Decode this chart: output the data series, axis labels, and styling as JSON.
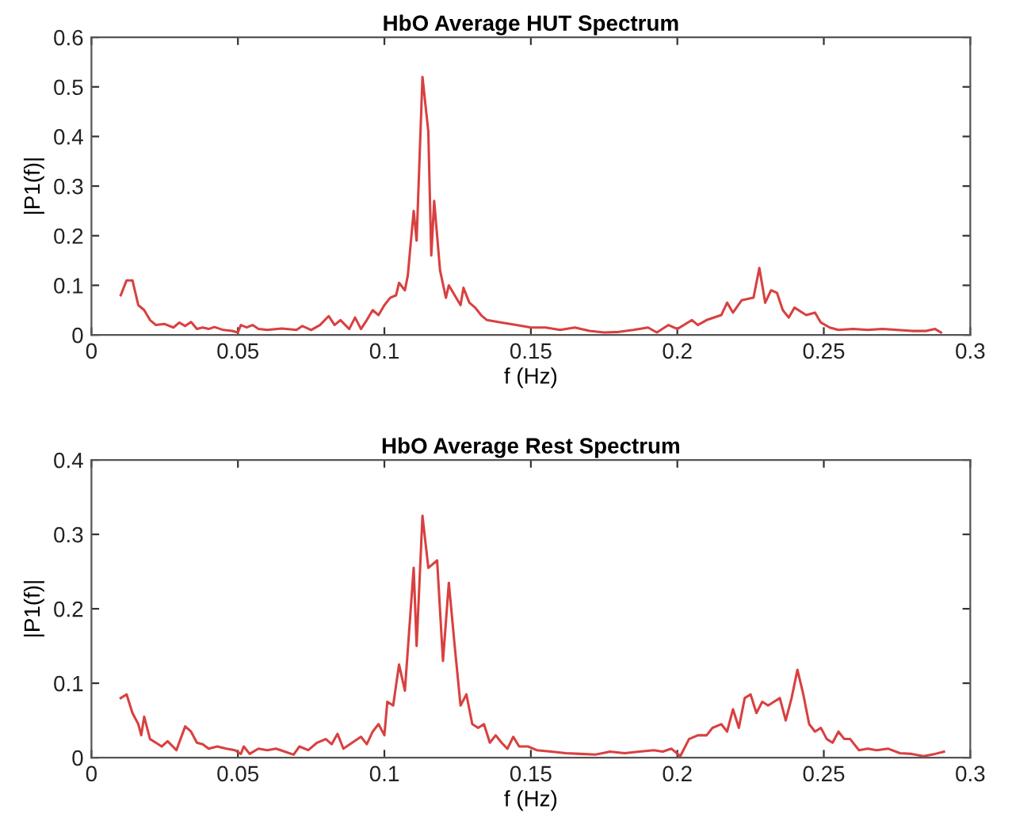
{
  "chart_data": [
    {
      "type": "line",
      "title": "HbO Average HUT Spectrum",
      "xlabel": "f (Hz)",
      "ylabel": "|P1(f)|",
      "xlim": [
        0,
        0.3
      ],
      "ylim": [
        0,
        0.6
      ],
      "xticks": [
        0,
        0.05,
        0.1,
        0.15,
        0.2,
        0.25,
        0.3
      ],
      "yticks": [
        0,
        0.1,
        0.2,
        0.3,
        0.4,
        0.5,
        0.6
      ],
      "grid": false,
      "legend": false,
      "series": [
        {
          "color": "#d94040",
          "x": [
            0.01,
            0.012,
            0.014,
            0.016,
            0.018,
            0.02,
            0.022,
            0.025,
            0.028,
            0.03,
            0.032,
            0.034,
            0.036,
            0.038,
            0.04,
            0.042,
            0.045,
            0.048,
            0.05,
            0.051,
            0.053,
            0.055,
            0.057,
            0.06,
            0.065,
            0.07,
            0.072,
            0.075,
            0.078,
            0.081,
            0.083,
            0.085,
            0.088,
            0.09,
            0.092,
            0.094,
            0.096,
            0.098,
            0.1,
            0.102,
            0.104,
            0.105,
            0.107,
            0.108,
            0.11,
            0.111,
            0.113,
            0.115,
            0.116,
            0.117,
            0.119,
            0.121,
            0.122,
            0.124,
            0.126,
            0.127,
            0.129,
            0.131,
            0.133,
            0.135,
            0.14,
            0.145,
            0.15,
            0.155,
            0.16,
            0.165,
            0.17,
            0.175,
            0.18,
            0.185,
            0.19,
            0.193,
            0.197,
            0.2,
            0.205,
            0.207,
            0.21,
            0.215,
            0.217,
            0.219,
            0.222,
            0.226,
            0.228,
            0.23,
            0.232,
            0.234,
            0.236,
            0.238,
            0.24,
            0.244,
            0.247,
            0.249,
            0.252,
            0.255,
            0.26,
            0.265,
            0.27,
            0.275,
            0.28,
            0.285,
            0.288,
            0.29
          ],
          "values": [
            0.08,
            0.11,
            0.11,
            0.06,
            0.05,
            0.03,
            0.02,
            0.022,
            0.015,
            0.025,
            0.018,
            0.026,
            0.012,
            0.015,
            0.012,
            0.016,
            0.01,
            0.008,
            0.005,
            0.02,
            0.015,
            0.02,
            0.012,
            0.01,
            0.013,
            0.01,
            0.018,
            0.01,
            0.02,
            0.038,
            0.02,
            0.03,
            0.012,
            0.035,
            0.012,
            0.03,
            0.05,
            0.04,
            0.06,
            0.075,
            0.08,
            0.105,
            0.09,
            0.12,
            0.25,
            0.19,
            0.52,
            0.41,
            0.16,
            0.27,
            0.13,
            0.075,
            0.1,
            0.08,
            0.06,
            0.095,
            0.065,
            0.055,
            0.04,
            0.03,
            0.025,
            0.02,
            0.015,
            0.015,
            0.01,
            0.015,
            0.008,
            0.005,
            0.006,
            0.01,
            0.015,
            0.005,
            0.02,
            0.012,
            0.03,
            0.02,
            0.03,
            0.04,
            0.065,
            0.045,
            0.07,
            0.075,
            0.135,
            0.065,
            0.09,
            0.085,
            0.05,
            0.035,
            0.055,
            0.04,
            0.045,
            0.025,
            0.015,
            0.01,
            0.012,
            0.01,
            0.012,
            0.01,
            0.008,
            0.008,
            0.012,
            0.005
          ]
        }
      ]
    },
    {
      "type": "line",
      "title": "HbO Average Rest Spectrum",
      "xlabel": "f (Hz)",
      "ylabel": "|P1(f)|",
      "xlim": [
        0,
        0.3
      ],
      "ylim": [
        0,
        0.4
      ],
      "xticks": [
        0,
        0.05,
        0.1,
        0.15,
        0.2,
        0.25,
        0.3
      ],
      "yticks": [
        0,
        0.1,
        0.2,
        0.3,
        0.4
      ],
      "grid": false,
      "legend": false,
      "series": [
        {
          "color": "#d94040",
          "x": [
            0.01,
            0.012,
            0.014,
            0.016,
            0.017,
            0.018,
            0.02,
            0.022,
            0.024,
            0.026,
            0.029,
            0.032,
            0.034,
            0.036,
            0.038,
            0.04,
            0.043,
            0.046,
            0.049,
            0.051,
            0.052,
            0.054,
            0.057,
            0.06,
            0.063,
            0.066,
            0.069,
            0.071,
            0.074,
            0.077,
            0.08,
            0.082,
            0.084,
            0.086,
            0.089,
            0.092,
            0.094,
            0.096,
            0.098,
            0.1,
            0.101,
            0.103,
            0.105,
            0.107,
            0.11,
            0.111,
            0.113,
            0.115,
            0.118,
            0.12,
            0.122,
            0.124,
            0.126,
            0.128,
            0.13,
            0.132,
            0.134,
            0.136,
            0.138,
            0.14,
            0.142,
            0.144,
            0.146,
            0.149,
            0.152,
            0.157,
            0.162,
            0.167,
            0.172,
            0.177,
            0.182,
            0.187,
            0.192,
            0.195,
            0.198,
            0.201,
            0.204,
            0.207,
            0.21,
            0.212,
            0.215,
            0.217,
            0.219,
            0.221,
            0.223,
            0.225,
            0.227,
            0.229,
            0.231,
            0.233,
            0.235,
            0.237,
            0.239,
            0.241,
            0.243,
            0.245,
            0.247,
            0.249,
            0.251,
            0.253,
            0.255,
            0.257,
            0.259,
            0.262,
            0.265,
            0.268,
            0.272,
            0.276,
            0.28,
            0.284,
            0.288,
            0.291
          ],
          "values": [
            0.08,
            0.085,
            0.06,
            0.045,
            0.03,
            0.055,
            0.025,
            0.02,
            0.015,
            0.022,
            0.01,
            0.042,
            0.035,
            0.02,
            0.018,
            0.012,
            0.015,
            0.012,
            0.01,
            0.005,
            0.015,
            0.005,
            0.012,
            0.01,
            0.012,
            0.008,
            0.004,
            0.015,
            0.01,
            0.02,
            0.025,
            0.018,
            0.032,
            0.012,
            0.02,
            0.028,
            0.018,
            0.035,
            0.045,
            0.03,
            0.075,
            0.07,
            0.125,
            0.09,
            0.255,
            0.15,
            0.325,
            0.255,
            0.265,
            0.13,
            0.235,
            0.15,
            0.07,
            0.085,
            0.045,
            0.04,
            0.045,
            0.02,
            0.03,
            0.02,
            0.012,
            0.028,
            0.015,
            0.015,
            0.01,
            0.008,
            0.006,
            0.005,
            0.004,
            0.008,
            0.006,
            0.008,
            0.01,
            0.008,
            0.012,
            0.002,
            0.025,
            0.03,
            0.03,
            0.04,
            0.045,
            0.035,
            0.065,
            0.04,
            0.08,
            0.085,
            0.06,
            0.075,
            0.07,
            0.075,
            0.08,
            0.05,
            0.08,
            0.118,
            0.085,
            0.045,
            0.035,
            0.04,
            0.025,
            0.02,
            0.035,
            0.025,
            0.025,
            0.01,
            0.012,
            0.01,
            0.012,
            0.006,
            0.005,
            0.002,
            0.005,
            0.008
          ]
        }
      ]
    }
  ]
}
